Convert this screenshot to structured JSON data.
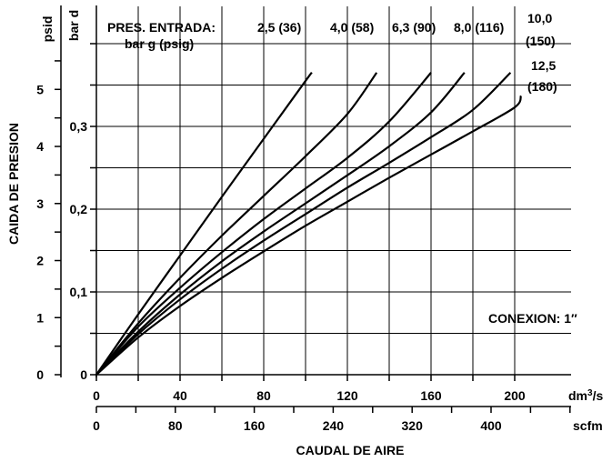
{
  "chart_data": {
    "type": "line",
    "ylabel": "CAIDA DE PRESION",
    "xlabel": "CAUDAL DE AIRE",
    "y_unit_psid": "psid",
    "y_unit_bar": "bar d",
    "x_unit_dm3s": "dm³/s",
    "x_unit_scfm": "scfm",
    "legend_title_line1": "PRES. ENTRADA:",
    "legend_title_line2": "bar g (psig)",
    "annotation": "CONEXION: 1″",
    "x_ticks_dm3s": [
      "0",
      "40",
      "80",
      "120",
      "160",
      "200"
    ],
    "x_ticks_scfm": [
      "0",
      "80",
      "160",
      "240",
      "320",
      "400"
    ],
    "y_ticks_psid": [
      "0",
      "1",
      "2",
      "3",
      "4",
      "5"
    ],
    "y_ticks_bar": [
      "0",
      "0,1",
      "0,2",
      "0,3"
    ],
    "xlim_dm3s": [
      0,
      225
    ],
    "ylim_bar": [
      0,
      0.4
    ],
    "grid": true,
    "series": [
      {
        "name": "2,5 (36)",
        "x_dm3s": [
          0,
          20,
          40,
          60,
          80,
          100,
          103
        ],
        "y_bar_d": [
          0,
          0.073,
          0.144,
          0.215,
          0.285,
          0.355,
          0.365
        ]
      },
      {
        "name": "4,0 (58)",
        "x_dm3s": [
          0,
          20,
          40,
          60,
          80,
          100,
          120,
          134
        ],
        "y_bar_d": [
          0,
          0.062,
          0.117,
          0.168,
          0.216,
          0.264,
          0.315,
          0.365
        ]
      },
      {
        "name": "6,3 (90)",
        "x_dm3s": [
          0,
          20,
          40,
          60,
          80,
          100,
          120,
          140,
          160
        ],
        "y_bar_d": [
          0,
          0.058,
          0.105,
          0.148,
          0.188,
          0.225,
          0.262,
          0.306,
          0.365
        ]
      },
      {
        "name": "8,0 (116)",
        "x_dm3s": [
          0,
          20,
          40,
          60,
          80,
          100,
          120,
          140,
          160,
          176
        ],
        "y_bar_d": [
          0,
          0.052,
          0.097,
          0.137,
          0.173,
          0.207,
          0.241,
          0.276,
          0.317,
          0.365
        ]
      },
      {
        "name": "10,0 (150)",
        "x_dm3s": [
          0,
          20,
          40,
          60,
          80,
          100,
          120,
          140,
          160,
          180,
          198
        ],
        "y_bar_d": [
          0,
          0.049,
          0.091,
          0.128,
          0.162,
          0.194,
          0.226,
          0.256,
          0.287,
          0.32,
          0.365
        ]
      },
      {
        "name": "12,5 (180)",
        "x_dm3s": [
          0,
          20,
          40,
          60,
          80,
          100,
          120,
          140,
          160,
          180,
          200,
          203
        ],
        "y_bar_d": [
          0,
          0.045,
          0.083,
          0.117,
          0.149,
          0.18,
          0.209,
          0.238,
          0.266,
          0.294,
          0.323,
          0.337
        ]
      }
    ]
  }
}
